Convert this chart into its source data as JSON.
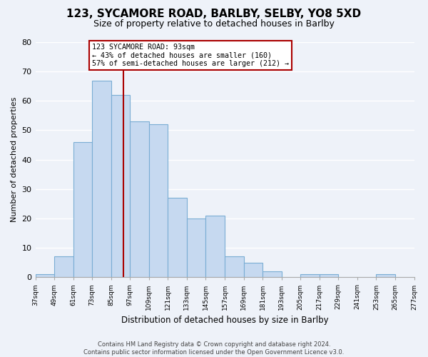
{
  "title": "123, SYCAMORE ROAD, BARLBY, SELBY, YO8 5XD",
  "subtitle": "Size of property relative to detached houses in Barlby",
  "xlabel": "Distribution of detached houses by size in Barlby",
  "ylabel": "Number of detached properties",
  "bar_edges": [
    37,
    49,
    61,
    73,
    85,
    97,
    109,
    121,
    133,
    145,
    157,
    169,
    181,
    193,
    205,
    217,
    229,
    241,
    253,
    265,
    277
  ],
  "bar_heights": [
    1,
    7,
    46,
    67,
    62,
    53,
    52,
    27,
    20,
    21,
    7,
    5,
    2,
    0,
    1,
    1,
    0,
    0,
    1,
    0
  ],
  "bar_color": "#c6d9f0",
  "bar_edge_color": "#7aadd4",
  "property_line_x": 93,
  "property_line_color": "#aa0000",
  "annotation_text": "123 SYCAMORE ROAD: 93sqm\n← 43% of detached houses are smaller (160)\n57% of semi-detached houses are larger (212) →",
  "annotation_box_color": "white",
  "annotation_box_edge_color": "#aa0000",
  "ylim": [
    0,
    80
  ],
  "yticks": [
    0,
    10,
    20,
    30,
    40,
    50,
    60,
    70,
    80
  ],
  "footer_line1": "Contains HM Land Registry data © Crown copyright and database right 2024.",
  "footer_line2": "Contains public sector information licensed under the Open Government Licence v3.0.",
  "bg_color": "#eef2f9",
  "grid_color": "white",
  "fig_width": 6.0,
  "fig_height": 5.0,
  "dpi": 100
}
